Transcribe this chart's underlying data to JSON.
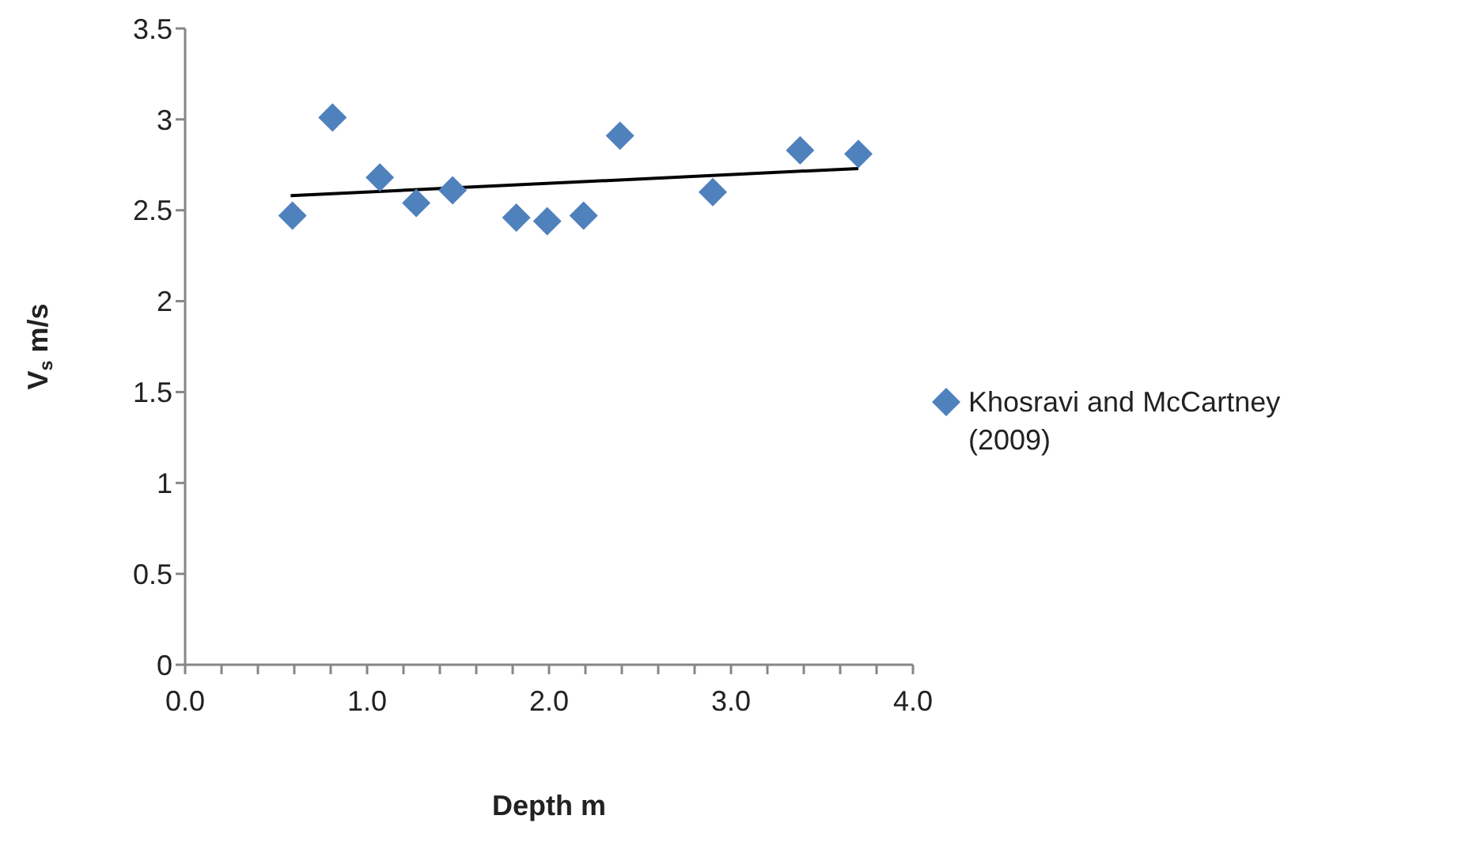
{
  "chart_data": {
    "type": "scatter",
    "xlabel": "Depth m",
    "ylabel": "V$_{s}$ m/s",
    "xlim": [
      0,
      4
    ],
    "ylim": [
      0,
      3.5
    ],
    "xticks": [
      {
        "value": 0,
        "label": "0.0"
      },
      {
        "value": 0.2,
        "label": null
      },
      {
        "value": 0.4,
        "label": null
      },
      {
        "value": 0.6,
        "label": null
      },
      {
        "value": 0.8,
        "label": null
      },
      {
        "value": 1,
        "label": "1.0"
      },
      {
        "value": 1.2,
        "label": null
      },
      {
        "value": 1.4,
        "label": null
      },
      {
        "value": 1.6,
        "label": null
      },
      {
        "value": 1.8,
        "label": null
      },
      {
        "value": 2,
        "label": "2.0"
      },
      {
        "value": 2.2,
        "label": null
      },
      {
        "value": 2.4,
        "label": null
      },
      {
        "value": 2.6,
        "label": null
      },
      {
        "value": 2.8,
        "label": null
      },
      {
        "value": 3,
        "label": "3.0"
      },
      {
        "value": 3.2,
        "label": null
      },
      {
        "value": 3.4,
        "label": null
      },
      {
        "value": 3.6,
        "label": null
      },
      {
        "value": 3.8,
        "label": null
      },
      {
        "value": 4,
        "label": "4.0"
      }
    ],
    "yticks": [
      0,
      0.5,
      1,
      1.5,
      2,
      2.5,
      3,
      3.5
    ],
    "legend": "right",
    "marker": "diamond",
    "series": [
      {
        "name": "Khosravi and McCartney (2009)",
        "color": "#4f81bd",
        "x": [
          0.59,
          0.81,
          1.07,
          1.27,
          1.47,
          1.82,
          1.99,
          2.19,
          2.39,
          2.9,
          3.38,
          3.7
        ],
        "values": [
          2.47,
          3.01,
          2.68,
          2.54,
          2.61,
          2.46,
          2.44,
          2.47,
          2.91,
          2.6,
          2.83,
          2.81
        ]
      },
      {
        "type": "line",
        "color": "#000000",
        "marker": "none",
        "x": [
          0.58,
          3.7
        ],
        "values": [
          2.58,
          2.73
        ]
      }
    ]
  }
}
